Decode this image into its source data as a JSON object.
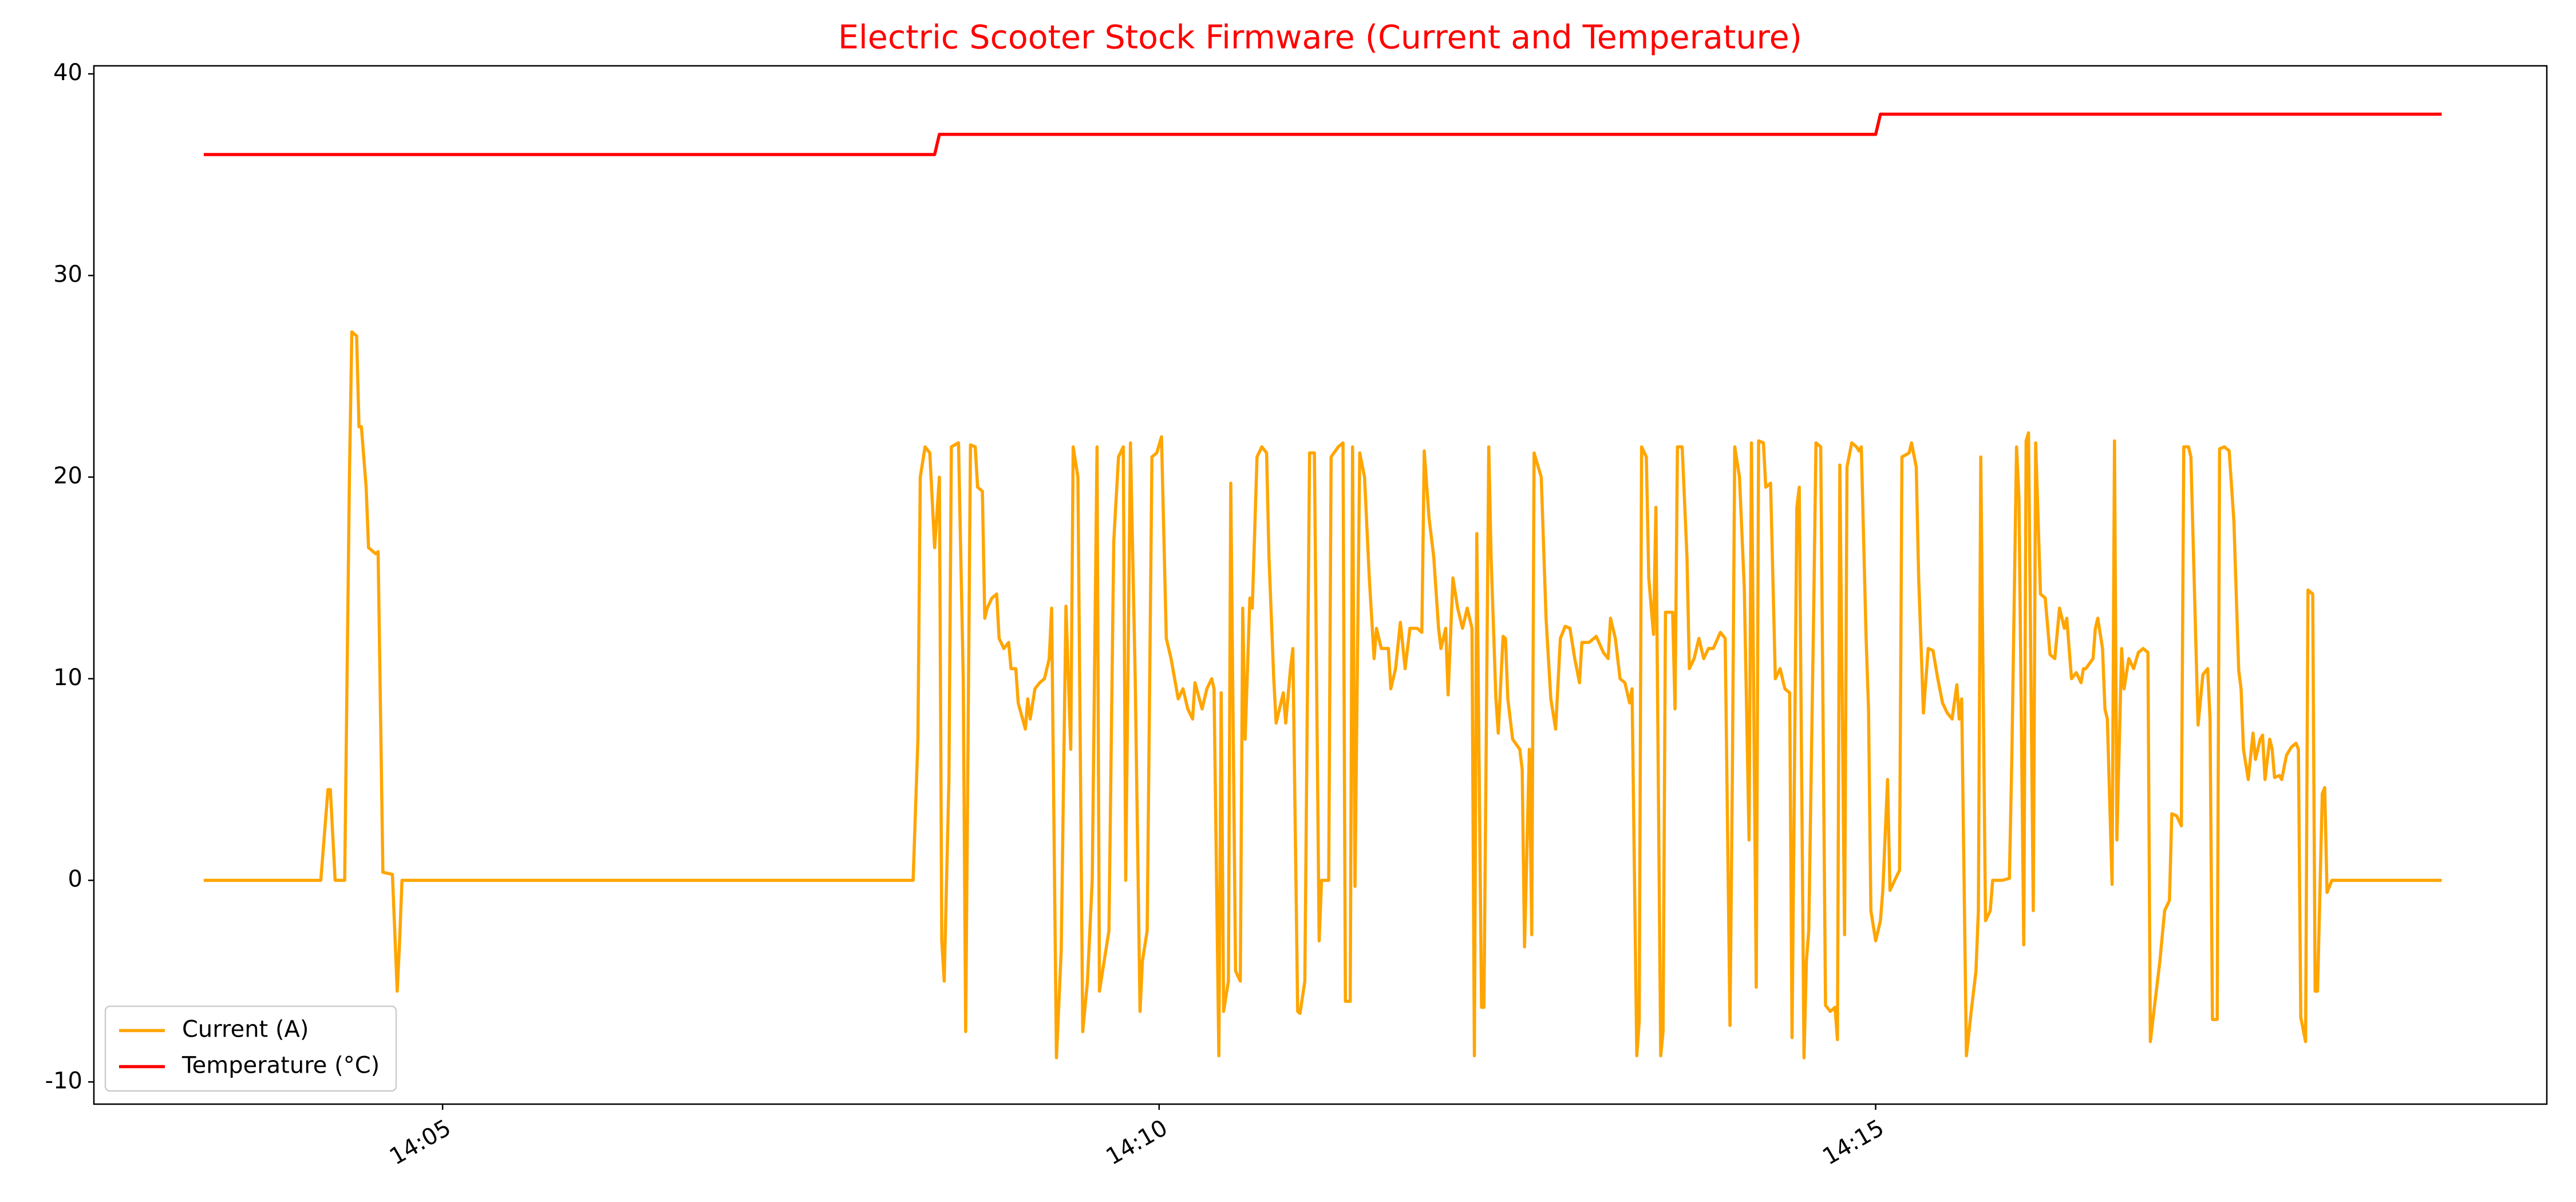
{
  "chart_data": {
    "type": "line",
    "title": "Electric Scooter Stock Firmware (Current and Temperature)",
    "title_color": "#ff0000",
    "xlim": [
      154,
      1181
    ],
    "xticks": [
      {
        "value": 300,
        "label": "14:05"
      },
      {
        "value": 600,
        "label": "14:10"
      },
      {
        "value": 900,
        "label": "14:15"
      }
    ],
    "ylim": [
      -11.1,
      40.4
    ],
    "yticks": [
      -10,
      0,
      10,
      20,
      30,
      40
    ],
    "grid": false,
    "legend": "lower left",
    "series": [
      {
        "name": "Current (A)",
        "color": "#ffa500",
        "x": [
          200,
          249,
          252,
          253,
          255,
          259,
          261,
          262,
          264,
          265,
          266,
          268,
          269,
          272,
          273,
          275,
          279,
          281,
          282,
          283,
          287,
          497,
          499,
          500,
          502,
          504,
          506,
          508,
          509,
          510,
          512,
          513,
          516,
          518,
          519,
          521,
          523,
          524,
          526,
          527,
          528,
          530,
          532,
          533,
          535,
          537,
          538,
          540,
          541,
          544,
          545,
          546,
          548,
          550,
          552,
          554,
          555,
          557,
          559,
          561,
          563,
          564,
          566,
          568,
          570,
          572,
          574,
          575,
          577,
          579,
          581,
          583,
          585,
          586,
          588,
          590,
          592,
          593,
          595,
          597,
          599,
          601,
          603,
          605,
          608,
          610,
          612,
          614,
          615,
          618,
          620,
          622,
          623,
          625,
          626,
          627,
          629,
          630,
          632,
          634,
          635,
          636,
          638,
          639,
          641,
          643,
          645,
          646,
          648,
          649,
          652,
          653,
          655,
          656,
          658,
          659,
          661,
          663,
          665,
          667,
          668,
          671,
          672,
          675,
          677,
          678,
          680,
          681,
          682,
          684,
          686,
          688,
          690,
          691,
          693,
          696,
          697,
          699,
          701,
          703,
          705,
          708,
          710,
          711,
          713,
          715,
          717,
          718,
          720,
          721,
          723,
          725,
          727,
          729,
          731,
          732,
          733,
          735,
          736,
          738,
          739,
          741,
          742,
          744,
          745,
          746,
          748,
          751,
          752,
          753,
          755,
          756,
          757,
          760,
          762,
          764,
          766,
          768,
          770,
          772,
          774,
          776,
          777,
          780,
          783,
          786,
          788,
          789,
          791,
          793,
          795,
          797,
          798,
          800,
          801,
          802,
          804,
          805,
          807,
          808,
          810,
          811,
          812,
          815,
          816,
          817,
          819,
          821,
          822,
          824,
          826,
          828,
          830,
          832,
          835,
          837,
          839,
          840,
          841,
          843,
          845,
          847,
          848,
          850,
          851,
          853,
          854,
          856,
          858,
          860,
          862,
          864,
          865,
          867,
          868,
          870,
          871,
          872,
          874,
          875,
          877,
          879,
          881,
          883,
          884,
          885,
          887,
          888,
          890,
          892,
          893,
          894,
          896,
          897,
          898,
          900,
          902,
          903,
          905,
          906,
          908,
          910,
          911,
          914,
          915,
          917,
          918,
          920,
          922,
          924,
          926,
          928,
          930,
          932,
          934,
          935,
          936,
          938,
          940,
          942,
          943,
          944,
          946,
          948,
          949,
          951,
          953,
          956,
          957,
          959,
          960,
          962,
          963,
          964,
          966,
          967,
          969,
          971,
          973,
          975,
          977,
          979,
          980,
          982,
          984,
          986,
          987,
          988,
          991,
          992,
          993,
          995,
          996,
          997,
          999,
          1000,
          1001,
          1003,
          1004,
          1006,
          1008,
          1010,
          1012,
          1014,
          1015,
          1017,
          1019,
          1021,
          1023,
          1024,
          1026,
          1028,
          1029,
          1031,
          1032,
          1034,
          1035,
          1037,
          1039,
          1040,
          1041,
          1043,
          1044,
          1046,
          1048,
          1050,
          1052,
          1053,
          1054,
          1056,
          1058,
          1059,
          1061,
          1062,
          1063,
          1065,
          1066,
          1067,
          1069,
          1070,
          1072,
          1074,
          1076,
          1077,
          1078,
          1080,
          1081,
          1083,
          1084,
          1085,
          1087,
          1088,
          1089,
          1091,
          1137
        ],
        "values": [
          0,
          0,
          4.5,
          4.5,
          0,
          0,
          20,
          27.2,
          27,
          22.5,
          22.5,
          19.5,
          16.5,
          16.2,
          16.3,
          0.4,
          0.3,
          -5.5,
          -3,
          0,
          0,
          0,
          7,
          20,
          21.5,
          21.2,
          16.5,
          20,
          -3,
          -5,
          5,
          21.5,
          21.7,
          10,
          -7.5,
          21.6,
          21.5,
          19.5,
          19.3,
          13,
          13.5,
          14,
          14.2,
          12,
          11.5,
          11.8,
          10.5,
          10.5,
          8.8,
          7.5,
          9,
          8,
          9.5,
          9.8,
          10,
          11,
          13.5,
          -8.8,
          -3.5,
          13.6,
          6.5,
          21.5,
          20,
          -7.5,
          -5,
          0,
          21.5,
          -5.5,
          -4,
          -2.5,
          16.8,
          21,
          21.5,
          0,
          21.7,
          10,
          -6.5,
          -4,
          -2.5,
          21,
          21.2,
          22,
          12,
          11,
          9,
          9.5,
          8.5,
          8,
          9.8,
          8.5,
          9.5,
          10,
          9.5,
          -8.7,
          9.3,
          -6.5,
          -5,
          19.7,
          -4.5,
          -5,
          13.5,
          7,
          14,
          13.5,
          21,
          21.5,
          21.2,
          16,
          10,
          7.8,
          9.3,
          7.8,
          10.5,
          11.5,
          -6.5,
          -6.6,
          -5,
          21.2,
          21.2,
          -3,
          0,
          0,
          21,
          21.5,
          21.7,
          -6,
          -6,
          21.5,
          -0.3,
          21.2,
          20,
          15,
          11,
          12.5,
          11.5,
          11.5,
          9.5,
          10.5,
          12.8,
          10.5,
          12.5,
          12.5,
          12.3,
          21.3,
          18,
          16,
          12.5,
          11.5,
          12.5,
          9.2,
          15,
          13.5,
          12.5,
          13.5,
          12.5,
          -8.7,
          17.2,
          -6.3,
          -6.3,
          21.5,
          16,
          9,
          7.3,
          12.1,
          12,
          9,
          7,
          6.5,
          5.5,
          -3.3,
          6.5,
          -2.7,
          21.2,
          20,
          13,
          9,
          7.5,
          12,
          12.6,
          12.5,
          11,
          9.8,
          11.8,
          11.8,
          12.1,
          11.3,
          11,
          13,
          12,
          10,
          9.8,
          8.8,
          9.5,
          -8.7,
          -7,
          21.5,
          21,
          15,
          12.2,
          18.5,
          -8.7,
          -7.5,
          13.3,
          13.3,
          8.5,
          21.5,
          21.5,
          16,
          10.5,
          11,
          12,
          11,
          11.5,
          11.5,
          12.3,
          12,
          -7.2,
          5,
          21.5,
          20,
          14.5,
          2,
          21.7,
          -5.3,
          21.8,
          21.7,
          19.5,
          19.7,
          10,
          10.5,
          9.5,
          9.3,
          -7.8,
          18.5,
          19.5,
          -8.8,
          -4,
          -2.5,
          13,
          21.7,
          21.5,
          -6.2,
          -6.5,
          -6.3,
          -7.9,
          20.6,
          -2.7,
          20.5,
          21.7,
          21.5,
          21.3,
          21.5,
          12,
          8.5,
          -1.5,
          -3,
          -2,
          -0.5,
          5,
          -0.5,
          0,
          0.5,
          21,
          21.2,
          21.7,
          20.5,
          15,
          8.3,
          11.5,
          11.4,
          10,
          8.8,
          8.3,
          8,
          9.7,
          8,
          9,
          -8.7,
          -6.5,
          -4.5,
          -1.5,
          21,
          -2,
          -1.5,
          0,
          0,
          0,
          0.1,
          6,
          21.5,
          19,
          -3.2,
          21.8,
          22.2,
          -1.5,
          21.7,
          14.2,
          14,
          11.2,
          11,
          13.5,
          12.5,
          13,
          10,
          10.3,
          9.8,
          10.5,
          10.5,
          11,
          12.5,
          13,
          11.5,
          8.5,
          8,
          -0.2,
          21.8,
          2,
          11.5,
          9.5,
          11,
          10.5,
          11.3,
          11.5,
          11.3,
          -8,
          -6,
          -4,
          -1.5,
          -1,
          3.3,
          3.2,
          2.7,
          21.5,
          21.5,
          21,
          12,
          7.7,
          10.2,
          10.5,
          8,
          -6.9,
          -6.9,
          21.4,
          21.5,
          21.3,
          17.8,
          10.4,
          9.5,
          6.5,
          5,
          7.3,
          6,
          7,
          7.2,
          5,
          7,
          6.5,
          5.1,
          5.2,
          5,
          6.2,
          6.6,
          6.8,
          6.5,
          -6.8,
          -8,
          14.4,
          14.2,
          -5.5,
          -5.5,
          4.3,
          4.6,
          -0.6,
          0,
          0
        ]
      },
      {
        "name": "Temperature (°C)",
        "color": "#ff0000",
        "x": [
          200,
          506,
          508,
          900,
          902,
          1137
        ],
        "values": [
          36,
          36,
          37,
          37,
          38,
          38
        ]
      }
    ]
  }
}
